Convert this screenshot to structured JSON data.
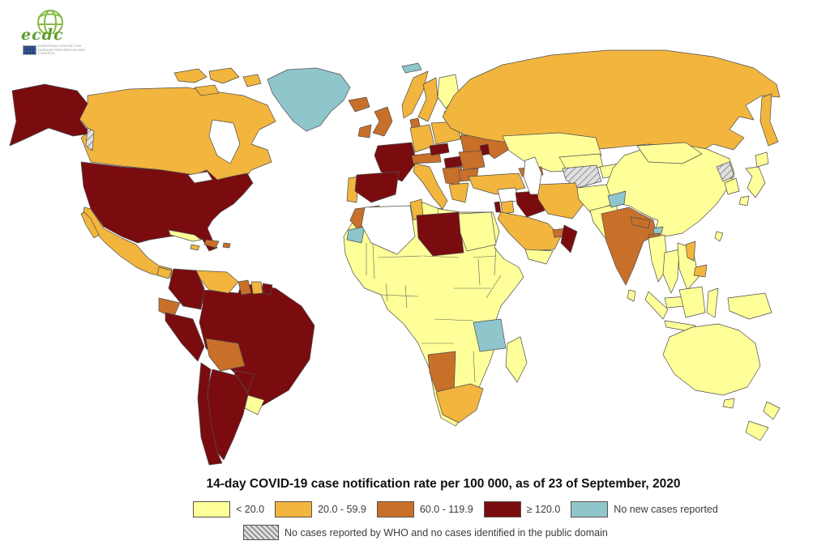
{
  "logo": {
    "brand": "ecdc",
    "agency_name": "EUROPEAN CENTRE FOR DISEASE PREVENTION AND CONTROL",
    "brand_color": "#5E9C32",
    "globe_color": "#86B944",
    "flag_color": "#23418F"
  },
  "title": "14-day COVID-19 case notification rate per 100 000, as of 23 of September, 2020",
  "legend": {
    "classes": [
      {
        "key": "lt20",
        "label": "< 20.0",
        "color": "#FFFF99"
      },
      {
        "key": "r20_59",
        "label": "20.0 - 59.9",
        "color": "#F2B53D"
      },
      {
        "key": "r60_119",
        "label": "60.0 - 119.9",
        "color": "#C8702A"
      },
      {
        "key": "r120",
        "label": "≥ 120.0",
        "color": "#7A0C10"
      },
      {
        "key": "no_new",
        "label": "No new cases reported",
        "color": "#8FC6CB"
      }
    ],
    "hatched_label": "No cases reported by WHO and no cases identified in the public domain"
  },
  "map": {
    "no_data_color": "#FFFFFF",
    "border_color": "#4D4D4D",
    "hatch": {
      "bg": "#E0E0E0",
      "line": "#8C8C8C"
    },
    "regions": {
      "alaska": "r120",
      "canada": "r20_59",
      "arctic-island-1": "r20_59",
      "arctic-island-2": "r20_59",
      "arctic-island-3": "r20_59",
      "arctic-island-4": "r20_59",
      "greenland": "no_new",
      "usa": "r120",
      "mexico": "r20_59",
      "baja": "r20_59",
      "guatemala": "r20_59",
      "honduras": "r20_59",
      "nicaragua": "lt20",
      "costa-rica-panama": "r120",
      "cuba": "lt20",
      "jamaica": "r20_59",
      "hispaniola": "r60_119",
      "puerto-rico": "r60_119",
      "bc-coast-patch": "hatched",
      "hudson-bay": "ocean",
      "great-lakes": "ocean",
      "colombia": "r120",
      "venezuela": "r20_59",
      "guyana": "r60_119",
      "suriname": "r20_59",
      "french-guiana": "r120",
      "ecuador": "r60_119",
      "peru": "r120",
      "brazil": "r120",
      "bolivia": "r60_119",
      "paraguay": "r120",
      "uruguay": "lt20",
      "argentina": "r120",
      "chile": "r120",
      "iceland": "r60_119",
      "ireland": "r60_119",
      "uk": "r60_119",
      "norway": "r20_59",
      "sweden": "r20_59",
      "finland": "lt20",
      "denmark": "r60_119",
      "baltics": "r20_59",
      "belarus": "r20_59",
      "poland": "r20_59",
      "germany": "r20_59",
      "france": "r120",
      "spain": "r120",
      "portugal": "r20_59",
      "italy": "r20_59",
      "sicily": "r20_59",
      "alpine": "r60_119",
      "czechia": "r120",
      "hungary": "r120",
      "romania": "r60_119",
      "moldova": "r120",
      "ukraine": "r60_119",
      "balkans": "r60_119",
      "bulgaria": "r60_119",
      "greece": "r20_59",
      "svalbard": "no_new",
      "russia": "r20_59",
      "kamchatka": "r20_59",
      "kazakhstan": "lt20",
      "caucasus": "r60_119",
      "turkey": "r20_59",
      "syria": "no_data",
      "israel": "r120",
      "jordan": "r20_59",
      "iraq": "r120",
      "iran": "r20_59",
      "saudi-arabia": "r20_59",
      "uae": "r60_119",
      "oman": "r120",
      "yemen": "lt20",
      "turkmenistan": "hatched",
      "uzbekistan": "lt20",
      "kyrgyzstan": "lt20",
      "afghanistan": "lt20",
      "pakistan": "lt20",
      "kashmir": "no_new",
      "india": "r60_119",
      "nepal": "r60_119",
      "bhutan": "no_new",
      "bangladesh": "r60_119",
      "sri-lanka": "lt20",
      "caspian-sea": "ocean",
      "china": "lt20",
      "mongolia": "lt20",
      "north-korea": "hatched",
      "south-korea": "lt20",
      "japan-hokkaido": "lt20",
      "japan-honshu": "lt20",
      "japan-kyushu": "lt20",
      "taiwan": "lt20",
      "myanmar": "lt20",
      "thailand": "lt20",
      "vietnam-laos": "lt20",
      "malaysia": "lt20",
      "philippines-luzon": "r20_59",
      "philippines-mindanao": "r20_59",
      "sumatra": "lt20",
      "java": "lt20",
      "borneo": "lt20",
      "sulawesi": "lt20",
      "new-guinea": "lt20",
      "africa-other": "lt20",
      "morocco": "r60_119",
      "western-sahara": "no_new",
      "algeria": "no_data",
      "tunisia": "r20_59",
      "libya": "r120",
      "egypt": "lt20",
      "tanzania": "no_new",
      "namibia": "r60_119",
      "south-africa": "r20_59",
      "madagascar": "lt20",
      "australia": "lt20",
      "tasmania": "lt20",
      "nz-north": "lt20",
      "nz-south": "lt20"
    }
  }
}
